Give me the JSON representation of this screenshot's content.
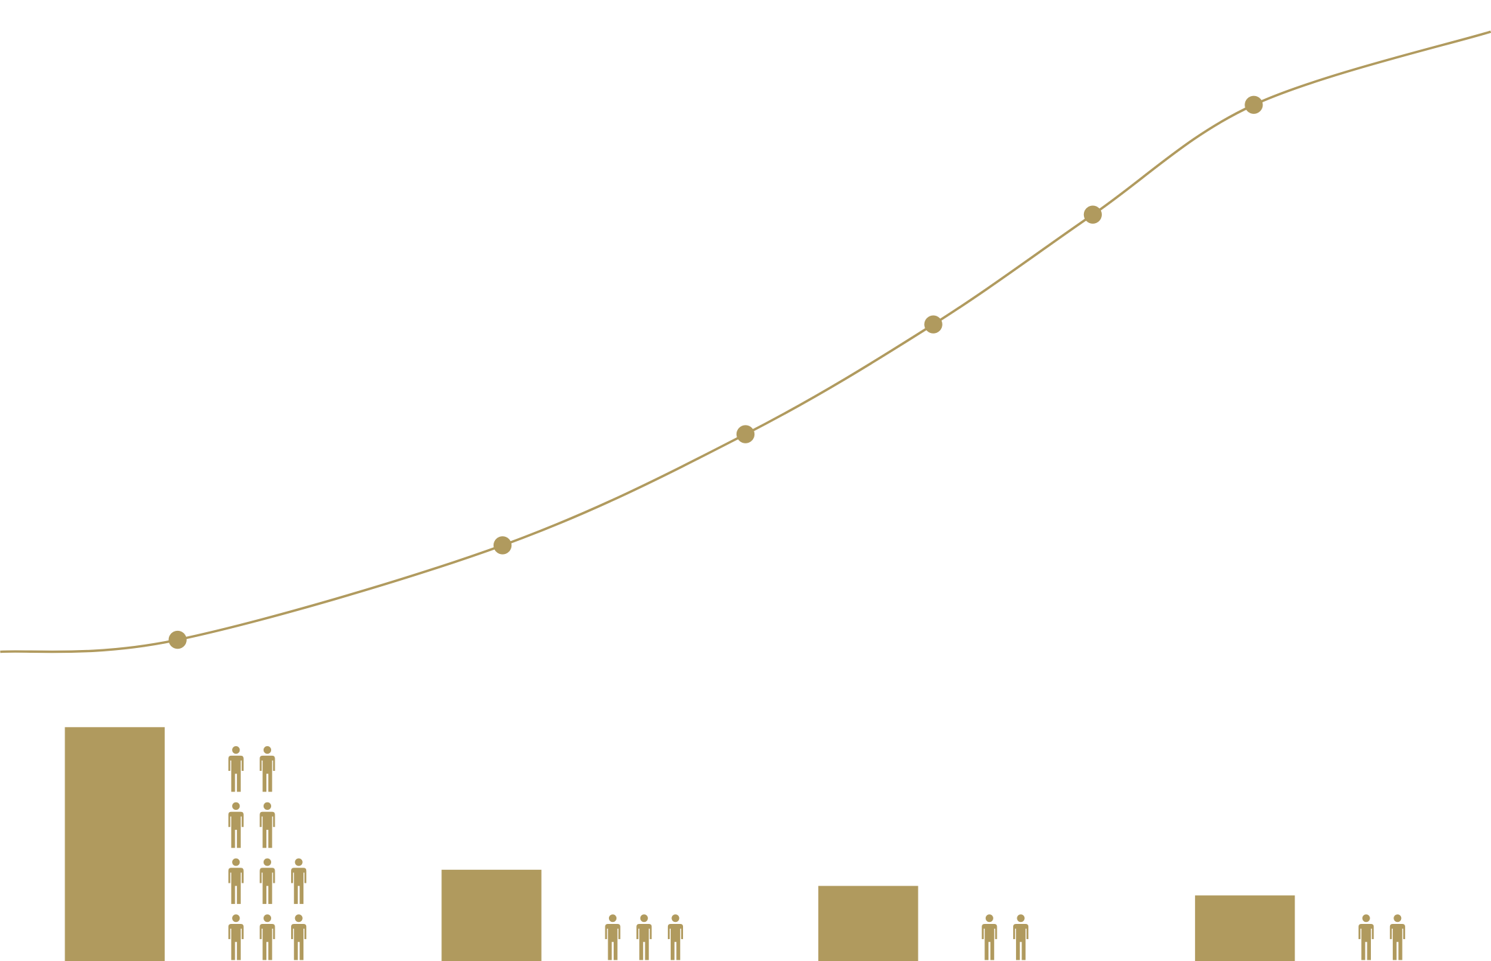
{
  "chart_data": [
    {
      "type": "line",
      "color": "#b09a5e",
      "x": [
        0,
        11.9,
        33.7,
        50,
        62.6,
        73.3,
        84.1,
        100
      ],
      "values": [
        4.9,
        6.7,
        20.9,
        37.6,
        54.1,
        70.6,
        87.1,
        98.1
      ],
      "markers": [
        false,
        true,
        true,
        true,
        true,
        true,
        true,
        false
      ],
      "xlim": [
        0,
        100
      ],
      "ylim": [
        0,
        100
      ]
    },
    {
      "type": "bar",
      "color": "#b09a5e",
      "values": [
        246,
        96,
        79,
        69
      ],
      "icons": [
        10,
        3,
        2,
        2
      ],
      "ylim": [
        0,
        250
      ]
    }
  ]
}
